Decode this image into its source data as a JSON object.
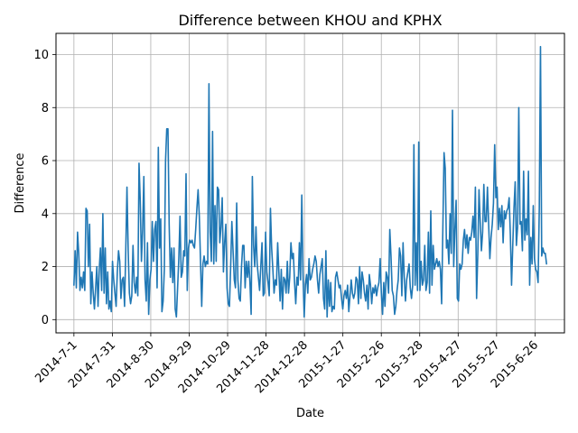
{
  "chart_data": {
    "type": "line",
    "title": "Difference between KHOU and KPHX",
    "xlabel": "Date",
    "ylabel": "Difference",
    "x_start": "2014-7-1",
    "x_end": "2015-7-5",
    "xlim": [
      "2014-6-17",
      "2015-7-19"
    ],
    "ylim": [
      -0.5,
      10.8
    ],
    "grid": true,
    "line_color": "#1f77b4",
    "x_ticks": [
      "2014-7-1",
      "2014-7-31",
      "2014-8-30",
      "2014-9-29",
      "2014-10-29",
      "2014-11-28",
      "2014-12-28",
      "2015-1-27",
      "2015-2-26",
      "2015-3-28",
      "2015-4-27",
      "2015-5-27",
      "2015-6-26"
    ],
    "y_ticks": [
      0,
      2,
      4,
      6,
      8,
      10
    ],
    "series": [
      {
        "values": [
          1.3,
          2.6,
          1.2,
          3.3,
          2.5,
          1.1,
          1.6,
          1.2,
          1.8,
          1.1,
          4.2,
          4.1,
          2.0,
          3.6,
          0.6,
          1.8,
          1.0,
          0.4,
          1.2,
          2.0,
          0.5,
          1.9,
          2.7,
          1.1,
          4.0,
          1.0,
          2.7,
          0.6,
          1.8,
          0.4,
          0.7,
          0.3,
          2.2,
          1.5,
          1.0,
          0.5,
          1.8,
          2.6,
          2.2,
          0.8,
          1.5,
          1.6,
          0.5,
          2.6,
          5.0,
          2.6,
          1.0,
          0.6,
          0.9,
          2.8,
          1.4,
          1.0,
          1.6,
          0.9,
          5.9,
          4.5,
          2.2,
          3.4,
          5.4,
          1.5,
          0.7,
          2.9,
          0.2,
          1.5,
          1.9,
          3.7,
          2.2,
          3.4,
          3.7,
          1.2,
          6.5,
          2.7,
          3.8,
          0.3,
          0.7,
          1.9,
          6.0,
          7.2,
          7.2,
          3.6,
          1.6,
          2.7,
          1.4,
          2.7,
          0.4,
          0.1,
          1.2,
          2.3,
          3.9,
          1.6,
          1.8,
          2.6,
          2.4,
          5.5,
          1.1,
          2.7,
          3.0,
          2.9,
          3.0,
          2.8,
          2.7,
          3.4,
          4.2,
          4.9,
          3.9,
          2.2,
          0.5,
          2.1,
          2.4,
          2.0,
          2.2,
          2.1,
          8.9,
          3.3,
          2.2,
          7.1,
          2.1,
          4.3,
          2.2,
          5.0,
          4.9,
          2.9,
          3.5,
          4.6,
          1.8,
          2.9,
          3.6,
          1.2,
          0.6,
          0.5,
          2.0,
          3.7,
          2.6,
          1.5,
          1.2,
          4.4,
          1.5,
          0.8,
          0.7,
          2.0,
          2.8,
          2.8,
          1.2,
          2.2,
          1.6,
          2.2,
          1.4,
          0.2,
          5.4,
          2.8,
          2.0,
          3.5,
          2.1,
          1.6,
          1.1,
          2.0,
          2.9,
          0.9,
          1.0,
          3.3,
          1.8,
          1.4,
          0.9,
          4.2,
          2.7,
          1.9,
          1.0,
          1.5,
          1.3,
          2.9,
          1.8,
          0.7,
          1.9,
          0.4,
          1.6,
          1.5,
          1.0,
          2.2,
          1.0,
          1.6,
          2.9,
          2.3,
          2.5,
          1.4,
          0.6,
          1.6,
          1.3,
          2.9,
          1.5,
          4.7,
          1.7,
          0.1,
          1.3,
          1.7,
          1.0,
          2.3,
          1.5,
          1.6,
          1.9,
          2.1,
          2.4,
          2.2,
          1.5,
          1.0,
          1.7,
          2.0,
          2.3,
          0.8,
          0.4,
          2.6,
          0.1,
          1.5,
          0.5,
          1.4,
          0.3,
          0.5,
          0.4,
          1.6,
          1.8,
          1.5,
          1.2,
          1.3,
          0.8,
          0.4,
          0.9,
          1.1,
          0.8,
          1.3,
          0.3,
          0.9,
          1.5,
          1.0,
          0.8,
          1.0,
          1.6,
          1.5,
          0.6,
          2.0,
          0.8,
          1.8,
          1.5,
          1.0,
          0.7,
          1.3,
          0.4,
          1.7,
          1.3,
          0.6,
          1.2,
          1.0,
          1.3,
          0.9,
          1.2,
          1.4,
          2.3,
          1.0,
          0.2,
          1.4,
          0.5,
          1.8,
          1.6,
          1.0,
          3.4,
          2.4,
          1.1,
          0.9,
          0.2,
          0.5,
          1.1,
          1.5,
          2.7,
          2.4,
          0.9,
          2.9,
          1.6,
          0.7,
          1.5,
          1.8,
          2.1,
          1.2,
          0.8,
          1.3,
          6.6,
          1.3,
          2.9,
          1.1,
          6.7,
          1.1,
          2.2,
          1.3,
          1.5,
          2.8,
          1.1,
          1.4,
          3.3,
          1.0,
          4.1,
          1.3,
          2.8,
          1.9,
          2.1,
          2.3,
          2.0,
          2.2,
          1.9,
          0.6,
          3.4,
          6.3,
          5.7,
          2.7,
          3.0,
          2.1,
          4.0,
          2.5,
          7.9,
          2.0,
          3.4,
          4.5,
          0.8,
          0.7,
          2.1,
          1.9,
          2.1,
          3.0,
          3.4,
          2.7,
          3.2,
          2.5,
          3.1,
          3.0,
          3.3,
          3.9,
          3.1,
          5.0,
          0.8,
          2.5,
          4.9,
          3.7,
          2.6,
          3.3,
          5.1,
          3.7,
          3.7,
          5.0,
          3.6,
          2.3,
          3.1,
          3.6,
          4.4,
          6.6,
          4.6,
          5.0,
          3.4,
          4.2,
          3.5,
          4.3,
          2.9,
          4.1,
          3.8,
          4.1,
          4.2,
          4.6,
          3.2,
          1.3,
          2.8,
          4.2,
          5.2,
          2.8,
          3.5,
          8.0,
          3.6,
          3.7,
          2.6,
          5.6,
          3.0,
          3.8,
          3.2,
          5.6,
          1.3,
          3.1,
          2.1,
          4.3,
          2.3,
          1.9,
          1.8,
          1.4,
          4.2,
          10.3,
          2.4,
          2.7,
          2.5,
          2.5,
          2.1
        ]
      }
    ]
  }
}
